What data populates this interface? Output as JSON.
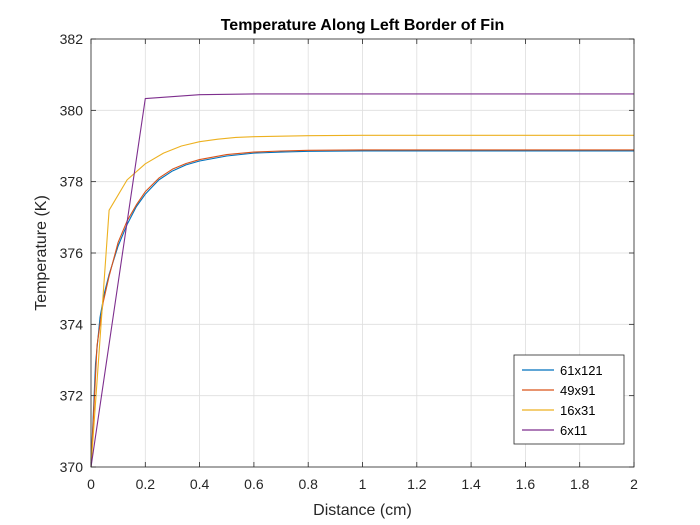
{
  "chart_data": {
    "type": "line",
    "title": "Temperature Along Left Border of Fin",
    "xlabel": "Distance (cm)",
    "ylabel": "Temperature (K)",
    "xlim": [
      0,
      2
    ],
    "ylim": [
      370,
      382
    ],
    "xticks": [
      0,
      0.2,
      0.4,
      0.6,
      0.8,
      1,
      1.2,
      1.4,
      1.6,
      1.8,
      2
    ],
    "xtick_labels": [
      "0",
      "0.2",
      "0.4",
      "0.6",
      "0.8",
      "1",
      "1.2",
      "1.4",
      "1.6",
      "1.8",
      "2"
    ],
    "yticks": [
      370,
      372,
      374,
      376,
      378,
      380,
      382
    ],
    "ytick_labels": [
      "370",
      "372",
      "374",
      "376",
      "378",
      "380",
      "382"
    ],
    "grid": true,
    "legend_position": "bottom-right",
    "series": [
      {
        "name": "61x121",
        "color": "#0072BD",
        "x": [
          0,
          0.0167,
          0.0333,
          0.05,
          0.0667,
          0.1,
          0.133,
          0.167,
          0.2,
          0.25,
          0.3,
          0.35,
          0.4,
          0.5,
          0.6,
          0.7,
          0.8,
          1.0,
          1.2,
          1.4,
          1.6,
          1.8,
          2.0
        ],
        "y": [
          370.0,
          372.9,
          374.2,
          374.9,
          375.4,
          376.2,
          376.8,
          377.3,
          377.65,
          378.05,
          378.3,
          378.47,
          378.58,
          378.72,
          378.8,
          378.83,
          378.85,
          378.86,
          378.86,
          378.86,
          378.86,
          378.86,
          378.86
        ]
      },
      {
        "name": "49x91",
        "color": "#D95319",
        "x": [
          0,
          0.0222,
          0.0444,
          0.0667,
          0.1,
          0.133,
          0.167,
          0.2,
          0.25,
          0.3,
          0.35,
          0.4,
          0.5,
          0.6,
          0.7,
          0.8,
          1.0,
          1.2,
          1.4,
          1.6,
          1.8,
          2.0
        ],
        "y": [
          370.0,
          373.4,
          374.6,
          375.35,
          376.3,
          376.9,
          377.35,
          377.72,
          378.1,
          378.35,
          378.51,
          378.62,
          378.76,
          378.83,
          378.86,
          378.88,
          378.89,
          378.89,
          378.89,
          378.89,
          378.89,
          378.89
        ]
      },
      {
        "name": "16x31",
        "color": "#EDB120",
        "x": [
          0,
          0.0667,
          0.133,
          0.2,
          0.267,
          0.333,
          0.4,
          0.467,
          0.533,
          0.6,
          0.8,
          1.0,
          1.2,
          1.4,
          1.6,
          1.8,
          2.0
        ],
        "y": [
          370.0,
          377.2,
          378.05,
          378.5,
          378.8,
          379.0,
          379.12,
          379.19,
          379.24,
          379.26,
          379.29,
          379.3,
          379.3,
          379.3,
          379.3,
          379.3,
          379.3
        ]
      },
      {
        "name": "6x11",
        "color": "#7E2F8E",
        "x": [
          0,
          0.2,
          0.4,
          0.6,
          0.8,
          1.0,
          1.2,
          1.4,
          1.6,
          1.8,
          2.0
        ],
        "y": [
          370.0,
          380.33,
          380.44,
          380.46,
          380.46,
          380.46,
          380.46,
          380.46,
          380.46,
          380.46,
          380.46
        ]
      }
    ]
  }
}
